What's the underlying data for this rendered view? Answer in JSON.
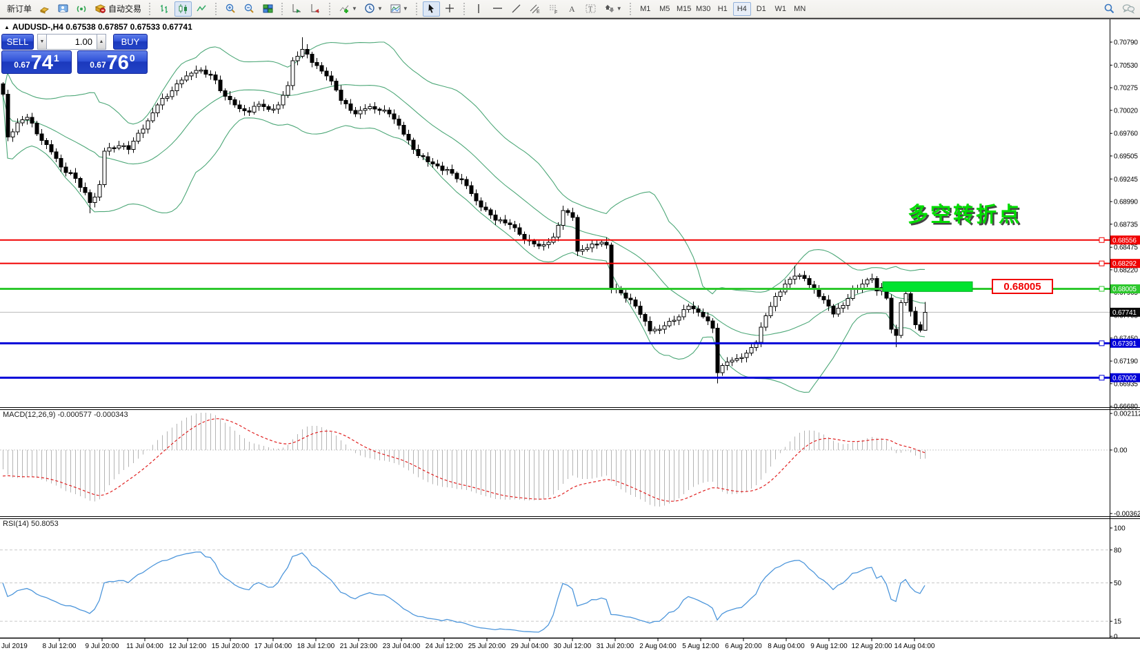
{
  "toolbar": {
    "new_order": "新订单",
    "auto_trading": "自动交易",
    "timeframes": [
      "M1",
      "M5",
      "M15",
      "M30",
      "H1",
      "H4",
      "D1",
      "W1",
      "MN"
    ],
    "active_timeframe": "H4",
    "icons": [
      "gold-icon",
      "terminal-icon",
      "signal-icon",
      "autotrading-icon",
      "bar-chart-icon",
      "candlestick-chart-icon",
      "line-chart-icon",
      "zoom-in-icon",
      "zoom-out-icon",
      "tile-windows-icon",
      "auto-scroll-icon",
      "chart-shift-icon",
      "indicators-icon",
      "periods-icon",
      "templates-icon",
      "cursor-icon",
      "crosshair-icon",
      "vertical-line-icon",
      "horizontal-line-icon",
      "trendline-icon",
      "equidistant-channel-icon",
      "fibonacci-icon",
      "text-icon",
      "text-label-icon",
      "arrows-icon",
      "search-icon",
      "chat-icon"
    ]
  },
  "window": {
    "title_line": "AUDUSD-,H4 0.67538 0.67857 0.67533 0.67741"
  },
  "trade_panel": {
    "sell_label": "SELL",
    "buy_label": "BUY",
    "volume": "1.00",
    "sell_price_prefix": "0.67",
    "sell_price_main": "74",
    "sell_price_sup": "1",
    "buy_price_prefix": "0.67",
    "buy_price_main": "76",
    "buy_price_sup": "0"
  },
  "annotation": {
    "text": "多空转折点",
    "color": "#00dd00"
  },
  "price_label_box": {
    "text": "0.68005"
  },
  "price_axis": {
    "labels": [
      "0.70790",
      "0.70530",
      "0.70275",
      "0.70020",
      "0.69760",
      "0.69505",
      "0.69245",
      "0.68990",
      "0.68735",
      "0.68475",
      "0.68220",
      "0.67965",
      "0.67705",
      "0.67450",
      "0.67190",
      "0.66935",
      "0.66680"
    ]
  },
  "hlines": [
    {
      "price": 0.68556,
      "label": "0.68556",
      "color": "#f00000",
      "width": 2
    },
    {
      "price": 0.68292,
      "label": "0.68292",
      "color": "#f00000",
      "width": 2
    },
    {
      "price": 0.68005,
      "label": "0.68005",
      "color": "#2dc82d",
      "width": 3
    },
    {
      "price": 0.67391,
      "label": "0.67391",
      "color": "#0000d8",
      "width": 3
    },
    {
      "price": 0.67002,
      "label": "0.67002",
      "color": "#0000d8",
      "width": 3
    }
  ],
  "current_price": {
    "price": 0.67741,
    "label": "0.67741",
    "color": "#0a0a0a"
  },
  "time_axis": {
    "labels": [
      "Jul 2019",
      "8 Jul 12:00",
      "9 Jul 20:00",
      "11 Jul 04:00",
      "12 Jul 12:00",
      "15 Jul 20:00",
      "17 Jul 04:00",
      "18 Jul 12:00",
      "21 Jul 23:00",
      "23 Jul 04:00",
      "24 Jul 12:00",
      "25 Jul 20:00",
      "29 Jul 04:00",
      "30 Jul 12:00",
      "31 Jul 20:00",
      "2 Aug 04:00",
      "5 Aug 12:00",
      "6 Aug 20:00",
      "8 Aug 04:00",
      "9 Aug 12:00",
      "12 Aug 20:00",
      "14 Aug 04:00"
    ]
  },
  "macd_panel": {
    "label": "MACD(12,26,9) -0.000577 -0.000343",
    "axis_labels": [
      "0.002112",
      "0.00",
      "-0.003622"
    ]
  },
  "rsi_panel": {
    "label": "RSI(14) 50.8053",
    "axis_labels": [
      "100",
      "80",
      "50",
      "15",
      "0"
    ]
  },
  "colors": {
    "bull": "#ffffff",
    "bear": "#000000",
    "bollinger": "#4ca777",
    "macd_hist": "#b4b4b4",
    "macd_signal": "#e02020",
    "rsi_line": "#4d96db",
    "line_red": "#f00000",
    "line_green": "#2dc82d",
    "line_blue": "#0000d8",
    "panel_blue": "#2343c6",
    "highlight_green": "#00e32e",
    "current_price_line": "#b8b8b8"
  },
  "chart_data": {
    "type": "candlestick",
    "symbol": "AUDUSD-",
    "timeframe": "H4",
    "ohlc_current": {
      "open": 0.67538,
      "high": 0.67857,
      "low": 0.67533,
      "close": 0.67741
    },
    "price_axis_top": 0.71015,
    "price_axis_bottom": 0.6668,
    "candle_count": 192,
    "close_path": [
      [
        0,
        0.702
      ],
      [
        1,
        0.6972
      ],
      [
        3,
        0.6988
      ],
      [
        5,
        0.6994
      ],
      [
        8,
        0.6968
      ],
      [
        10,
        0.6955
      ],
      [
        12,
        0.6938
      ],
      [
        15,
        0.6925
      ],
      [
        18,
        0.6898
      ],
      [
        19,
        0.6904
      ],
      [
        20,
        0.6918
      ],
      [
        21,
        0.6956
      ],
      [
        24,
        0.6962
      ],
      [
        26,
        0.6958
      ],
      [
        28,
        0.6976
      ],
      [
        30,
        0.699
      ],
      [
        32,
        0.7008
      ],
      [
        35,
        0.7024
      ],
      [
        37,
        0.7036
      ],
      [
        40,
        0.7047
      ],
      [
        43,
        0.7042
      ],
      [
        46,
        0.7018
      ],
      [
        48,
        0.7008
      ],
      [
        49,
        0.7004
      ],
      [
        51,
        0.7
      ],
      [
        53,
        0.7009
      ],
      [
        55,
        0.7003
      ],
      [
        57,
        0.7008
      ],
      [
        59,
        0.703
      ],
      [
        60,
        0.7058
      ],
      [
        62,
        0.7071
      ],
      [
        64,
        0.7056
      ],
      [
        67,
        0.7041
      ],
      [
        69,
        0.7025
      ],
      [
        70,
        0.7013
      ],
      [
        72,
        0.7002
      ],
      [
        73,
        0.6998
      ],
      [
        75,
        0.7004
      ],
      [
        76,
        0.7006
      ],
      [
        78,
        0.7002
      ],
      [
        80,
        0.6998
      ],
      [
        82,
        0.6985
      ],
      [
        83,
        0.6975
      ],
      [
        85,
        0.6958
      ],
      [
        86,
        0.6951
      ],
      [
        88,
        0.6944
      ],
      [
        90,
        0.6939
      ],
      [
        93,
        0.6931
      ],
      [
        96,
        0.6917
      ],
      [
        98,
        0.69
      ],
      [
        99,
        0.6893
      ],
      [
        101,
        0.6884
      ],
      [
        102,
        0.6878
      ],
      [
        104,
        0.6875
      ],
      [
        105,
        0.6873
      ],
      [
        107,
        0.6862
      ],
      [
        108,
        0.6856
      ],
      [
        110,
        0.6851
      ],
      [
        111,
        0.6849
      ],
      [
        113,
        0.6853
      ],
      [
        114,
        0.6859
      ],
      [
        116,
        0.6889
      ],
      [
        118,
        0.6881
      ],
      [
        119,
        0.6843
      ],
      [
        121,
        0.6847
      ],
      [
        123,
        0.6851
      ],
      [
        124,
        0.6853
      ],
      [
        125,
        0.685
      ],
      [
        126,
        0.6801
      ],
      [
        128,
        0.6796
      ],
      [
        130,
        0.6788
      ],
      [
        131,
        0.6781
      ],
      [
        133,
        0.6764
      ],
      [
        134,
        0.6753
      ],
      [
        136,
        0.6755
      ],
      [
        137,
        0.6759
      ],
      [
        139,
        0.6765
      ],
      [
        140,
        0.6769
      ],
      [
        142,
        0.6781
      ],
      [
        144,
        0.6774
      ],
      [
        145,
        0.6769
      ],
      [
        147,
        0.6756
      ],
      [
        148,
        0.6706
      ],
      [
        150,
        0.6718
      ],
      [
        152,
        0.6722
      ],
      [
        154,
        0.6728
      ],
      [
        156,
        0.674
      ],
      [
        158,
        0.677
      ],
      [
        160,
        0.6792
      ],
      [
        162,
        0.6806
      ],
      [
        164,
        0.6815
      ],
      [
        166,
        0.6812
      ],
      [
        168,
        0.68
      ],
      [
        170,
        0.6788
      ],
      [
        172,
        0.6772
      ],
      [
        174,
        0.6782
      ],
      [
        176,
        0.68
      ],
      [
        178,
        0.6806
      ],
      [
        180,
        0.6812
      ],
      [
        181,
        0.6798
      ],
      [
        182,
        0.6802
      ],
      [
        183,
        0.679
      ],
      [
        184,
        0.6755
      ],
      [
        185,
        0.6748
      ],
      [
        186,
        0.6785
      ],
      [
        187,
        0.6795
      ],
      [
        188,
        0.6775
      ],
      [
        189,
        0.676
      ],
      [
        190,
        0.67538
      ],
      [
        191,
        0.67741
      ]
    ],
    "wick_high_ext": {
      "62": 0.0011,
      "164": 0.0006
    },
    "wick_low_ext": {
      "18": 0.0008,
      "148": 0.0009,
      "185": 0.0008
    },
    "bollinger": {
      "period": 20,
      "deviation": 2
    },
    "macd": {
      "fast": 12,
      "slow": 26,
      "signal": 9,
      "current_main": -0.000577,
      "current_signal": -0.000343,
      "axis_range": [
        -0.003622,
        0.002112
      ]
    },
    "rsi": {
      "period": 14,
      "current": 50.8053,
      "levels": [
        15,
        50,
        80
      ]
    },
    "levels": [
      0.68556,
      0.68292,
      0.68005,
      0.67391,
      0.67002
    ],
    "highlight_zone": {
      "price_top": 0.68085,
      "price_bottom": 0.67975
    }
  }
}
